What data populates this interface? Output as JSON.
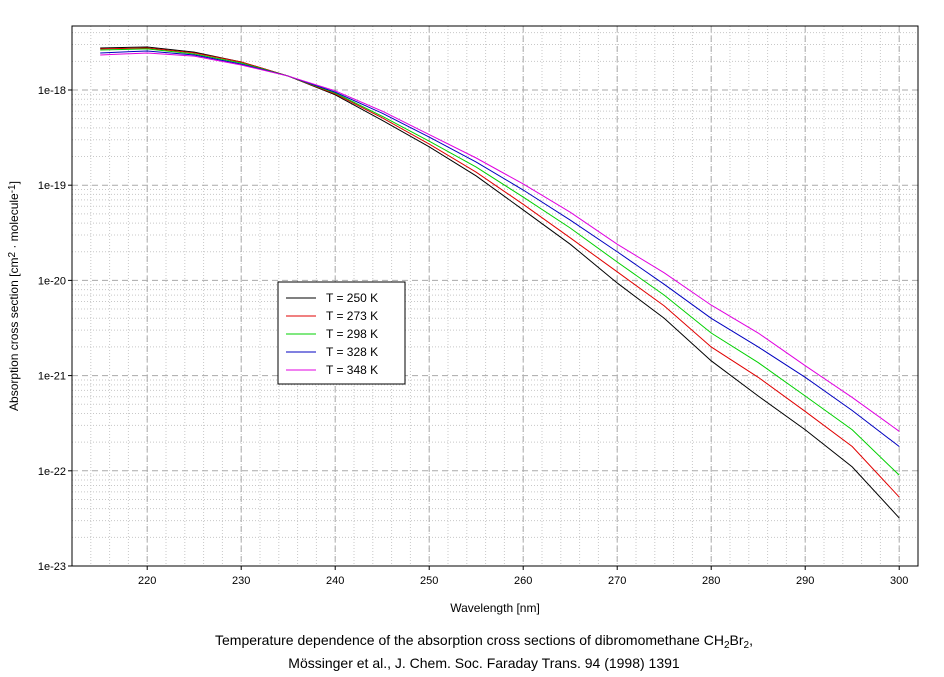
{
  "chart_data": {
    "type": "line",
    "x_label": "Wavelength [nm]",
    "y_label": [
      "Absorption cross section [cm",
      "2",
      " · molecule",
      "-1",
      "]"
    ],
    "caption": [
      [
        "Temperature dependence of the absorption cross sections of dibromomethane CH",
        "2",
        "Br",
        "2",
        ","
      ],
      [
        "Mössinger et al., J. Chem. Soc. Faraday Trans. 94 (1998) 1391"
      ]
    ],
    "log_y": true,
    "grid": true,
    "minor_grid": true,
    "xlim": [
      212,
      302
    ],
    "ylim": [
      1e-23,
      4.7e-18
    ],
    "xticks": [
      220,
      230,
      240,
      250,
      260,
      270,
      280,
      290,
      300
    ],
    "yticks": [
      {
        "value": 1e-23,
        "label": "1e-23"
      },
      {
        "value": 1e-22,
        "label": "1e-22"
      },
      {
        "value": 1e-21,
        "label": "1e-21"
      },
      {
        "value": 1e-20,
        "label": "1e-20"
      },
      {
        "value": 1e-19,
        "label": "1e-19"
      },
      {
        "value": 1e-18,
        "label": "1e-18"
      }
    ],
    "x": [
      215,
      220,
      225,
      230,
      235,
      240,
      245,
      250,
      255,
      260,
      265,
      270,
      275,
      280,
      285,
      290,
      295,
      300
    ],
    "series": [
      {
        "name": "T = 250 K",
        "color": "#000000",
        "values": [
          2.76e-18,
          2.83e-18,
          2.5e-18,
          1.97e-18,
          1.4e-18,
          8.9e-19,
          4.8e-19,
          2.53e-19,
          1.25e-19,
          5.5e-20,
          2.4e-20,
          9.4e-21,
          4e-21,
          1.43e-21,
          6.1e-22,
          2.7e-22,
          1.1e-22,
          3.2e-23
        ]
      },
      {
        "name": "T = 273 K",
        "color": "#e00000",
        "values": [
          2.7e-18,
          2.76e-18,
          2.45e-18,
          1.97e-18,
          1.4e-18,
          9.1e-19,
          5.1e-19,
          2.7e-19,
          1.37e-19,
          6.3e-20,
          2.8e-20,
          1.23e-20,
          5.4e-21,
          2e-21,
          9.6e-22,
          4.2e-22,
          1.8e-22,
          5.3e-23
        ]
      },
      {
        "name": "T = 298 K",
        "color": "#00d000",
        "values": [
          2.63e-18,
          2.7e-18,
          2.39e-18,
          1.92e-18,
          1.4e-18,
          9.3e-19,
          5.3e-19,
          2.9e-19,
          1.55e-19,
          7.5e-20,
          3.55e-20,
          1.56e-20,
          7e-21,
          2.8e-21,
          1.37e-21,
          6.1e-22,
          2.7e-22,
          9e-23
        ]
      },
      {
        "name": "T = 328 K",
        "color": "#0000c0",
        "values": [
          2.45e-18,
          2.57e-18,
          2.33e-18,
          1.87e-18,
          1.4e-18,
          9.5e-19,
          5.7e-19,
          3.2e-19,
          1.75e-19,
          8.9e-20,
          4.3e-20,
          2e-20,
          9.1e-21,
          4e-21,
          2e-21,
          9.6e-22,
          4.3e-22,
          1.8e-22
        ]
      },
      {
        "name": "T = 348 K",
        "color": "#e000e0",
        "values": [
          2.33e-18,
          2.45e-18,
          2.27e-18,
          1.83e-18,
          1.4e-18,
          9.8e-19,
          6e-19,
          3.4e-19,
          1.93e-19,
          1.03e-19,
          5.2e-20,
          2.4e-20,
          1.2e-20,
          5.5e-21,
          2.8e-21,
          1.27e-21,
          5.9e-22,
          2.6e-22
        ]
      }
    ]
  }
}
